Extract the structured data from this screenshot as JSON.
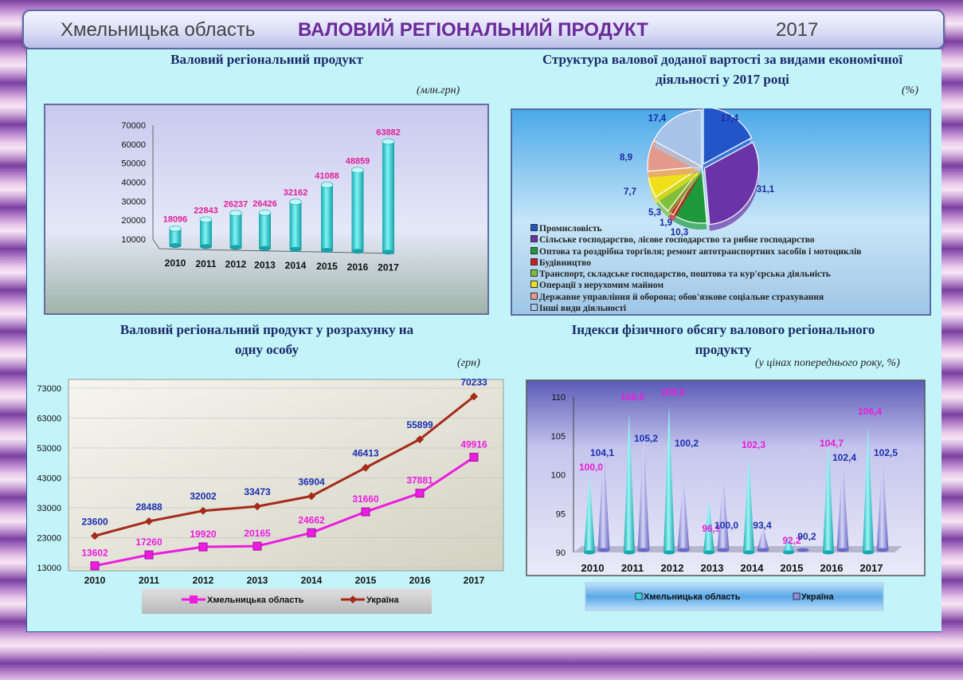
{
  "header": {
    "region": "Хмельницька область",
    "title": "ВАЛОВИЙ РЕГІОНАЛЬНИЙ ПРОДУКТ",
    "year": "2017"
  },
  "colors": {
    "cyan": "#2fd8dc",
    "magenta": "#ee1be0",
    "brown": "#a52a1a",
    "navy": "#1a2fb0",
    "purple": "#8e8ee6"
  },
  "chart_data": [
    {
      "id": "grp",
      "type": "bar",
      "title": "Валовий регіональний продукт",
      "unit": "(млн.грн)",
      "categories": [
        "2010",
        "2011",
        "2012",
        "2013",
        "2014",
        "2015",
        "2016",
        "2017"
      ],
      "values": [
        18096,
        22843,
        26237,
        26426,
        32162,
        41088,
        48859,
        63882
      ],
      "value_labels": [
        "18096",
        "22843",
        "26237",
        "26426",
        "32162",
        "41088",
        "48859",
        "63882"
      ],
      "yticks": [
        "10000",
        "20000",
        "30000",
        "40000",
        "50000",
        "60000",
        "70000"
      ],
      "ylim": [
        10000,
        70000
      ]
    },
    {
      "id": "gva",
      "type": "pie",
      "title": "Структура валової доданої вартості за видами економічної діяльності у 2017 році",
      "unit": "(%)",
      "values": [
        17.4,
        31.1,
        10.3,
        1.9,
        5.3,
        7.7,
        8.9,
        17.4
      ],
      "value_labels": [
        "17,4",
        "31,1",
        "10,3",
        "1,9",
        "5,3",
        "7,7",
        "8,9",
        "17,4"
      ],
      "labels": [
        "Промисловість",
        "Сільське господарство, лісове господарство та рибне господарство",
        "Оптова та роздрібна торгівля; ремонт автотранспортних засобів і мотоциклів",
        "Будівництво",
        "Транспорт, складське господарство, поштова та кур'єрська діяльність",
        "Операції з нерухомим майном",
        "Державне управління й оборона; обов'язкове соціальне страхування",
        "Інші види діяльності"
      ],
      "colors": [
        "#2255c8",
        "#6a34a8",
        "#1f9a3a",
        "#d21a1a",
        "#7fbf3a",
        "#f0e01a",
        "#e39a8a",
        "#a8c4e8"
      ]
    },
    {
      "id": "percap",
      "type": "line",
      "title": "Валовий регіональний продукт у розрахунку на одну особу",
      "unit": "(грн)",
      "x": [
        "2010",
        "2011",
        "2012",
        "2013",
        "2014",
        "2015",
        "2016",
        "2017"
      ],
      "yticks": [
        "13000",
        "23000",
        "33000",
        "43000",
        "53000",
        "63000",
        "73000"
      ],
      "ylim": [
        13000,
        73000
      ],
      "series": [
        {
          "name": "Хмельницька область",
          "values": [
            13602,
            17260,
            19920,
            20165,
            24662,
            31660,
            37881,
            49916
          ],
          "labels": [
            "13602",
            "17260",
            "19920",
            "20165",
            "24662",
            "31660",
            "37881",
            "49916"
          ]
        },
        {
          "name": "Україна",
          "values": [
            23600,
            28488,
            32002,
            33473,
            36904,
            46413,
            55899,
            70233
          ],
          "labels": [
            "23600",
            "28488",
            "32002",
            "33473",
            "36904",
            "46413",
            "55899",
            "70233"
          ]
        }
      ]
    },
    {
      "id": "index",
      "type": "bar",
      "title": "Індекси фізичного обсягу валового регіонального продукту",
      "unit": "(у цінах попереднього року, %)",
      "categories": [
        "2010",
        "2011",
        "2012",
        "2013",
        "2014",
        "2015",
        "2016",
        "2017"
      ],
      "yticks": [
        "90",
        "95",
        "100",
        "105",
        "110"
      ],
      "ylim": [
        90,
        110
      ],
      "series": [
        {
          "name": "Хмельницька область",
          "values": [
            100.0,
            108.0,
            109.0,
            96.9,
            102.3,
            92.2,
            104.7,
            106.4
          ],
          "labels": [
            "100,0",
            "108,0",
            "109,0",
            "96,9",
            "102,3",
            "92,2",
            "104,7",
            "106,4"
          ]
        },
        {
          "name": "Україна",
          "values": [
            104.1,
            105.2,
            100.2,
            100.0,
            93.4,
            90.2,
            102.4,
            102.5
          ],
          "labels": [
            "104,1",
            "105,2",
            "100,2",
            "100,0",
            "93,4",
            "90,2",
            "102,4",
            "102,5"
          ]
        }
      ]
    }
  ]
}
